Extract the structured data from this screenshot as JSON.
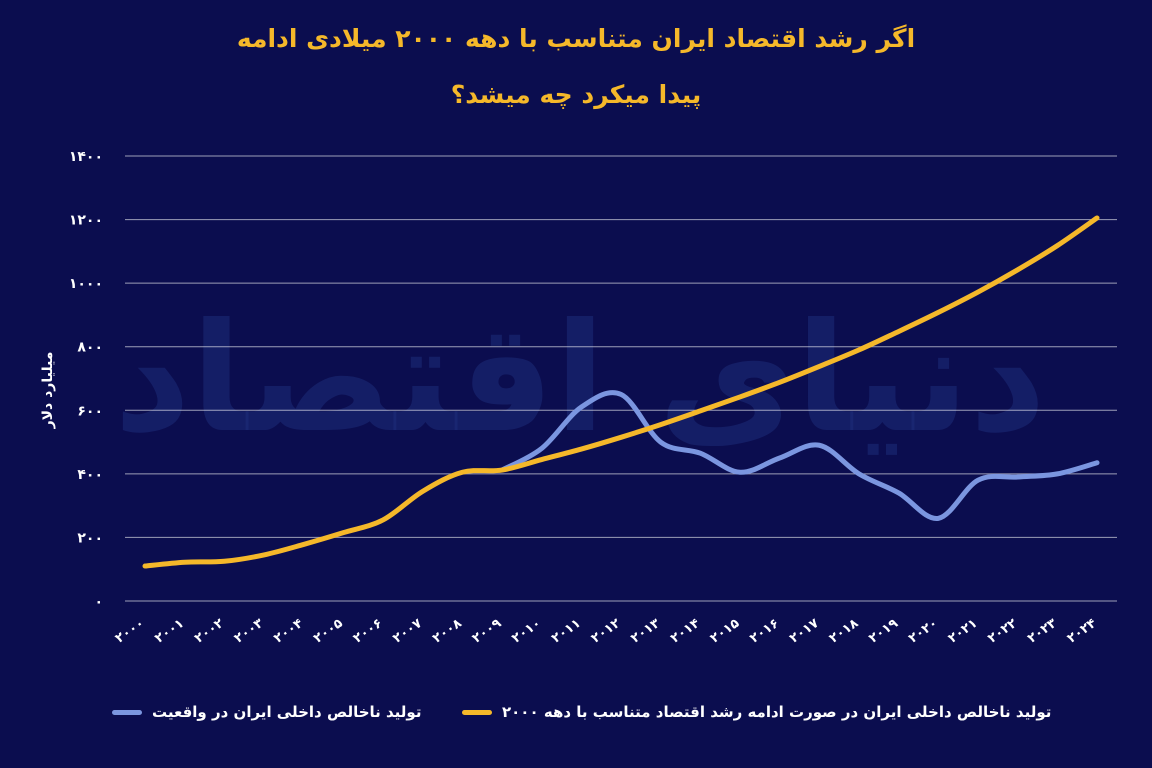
{
  "title_line1": "اگر رشد اقتصاد ایران متناسب با دهه ۲۰۰۰ میلادی ادامه",
  "title_line2": "پیدا میکرد چه میشد؟",
  "watermark": "دنیای اقتصاد",
  "chart_data": {
    "type": "line",
    "x": [
      "۲۰۰۰",
      "۲۰۰۱",
      "۲۰۰۲",
      "۲۰۰۳",
      "۲۰۰۴",
      "۲۰۰۵",
      "۲۰۰۶",
      "۲۰۰۷",
      "۲۰۰۸",
      "۲۰۰۹",
      "۲۰۱۰",
      "۲۰۱۱",
      "۲۰۱۲",
      "۲۰۱۳",
      "۲۰۱۴",
      "۲۰۱۵",
      "۲۰۱۶",
      "۲۰۱۷",
      "۲۰۱۸",
      "۲۰۱۹",
      "۲۰۲۰",
      "۲۰۲۱",
      "۲۰۲۲",
      "۲۰۲۳",
      "۲۰۲۴"
    ],
    "ylabel": "میلیارد دلار",
    "ylim": [
      0,
      1400
    ],
    "yticks": [
      0,
      200,
      400,
      600,
      800,
      1000,
      1200,
      1400
    ],
    "ytick_labels": [
      "۰",
      "۲۰۰",
      "۴۰۰",
      "۶۰۰",
      "۸۰۰",
      "۱۰۰۰",
      "۱۲۰۰",
      "۱۴۰۰"
    ],
    "grid": true,
    "legend_position": "bottom",
    "series": [
      {
        "name": "تولید ناخالص داخلی ایران در صورت ادامه رشد اقتصاد متناسب با دهه ۲۰۰۰",
        "color": "#f5b82a",
        "values": [
          110,
          122,
          125,
          145,
          178,
          215,
          255,
          345,
          405,
          412,
          445,
          478,
          515,
          555,
          598,
          642,
          688,
          738,
          790,
          848,
          908,
          972,
          1042,
          1118,
          1205
        ]
      },
      {
        "name": "تولید ناخالص داخلی ایران در واقعیت",
        "color": "#7b96e0",
        "values": [
          null,
          null,
          null,
          null,
          null,
          null,
          null,
          null,
          null,
          412,
          480,
          610,
          650,
          500,
          465,
          405,
          450,
          490,
          400,
          340,
          260,
          380,
          390,
          400,
          435
        ]
      }
    ]
  }
}
